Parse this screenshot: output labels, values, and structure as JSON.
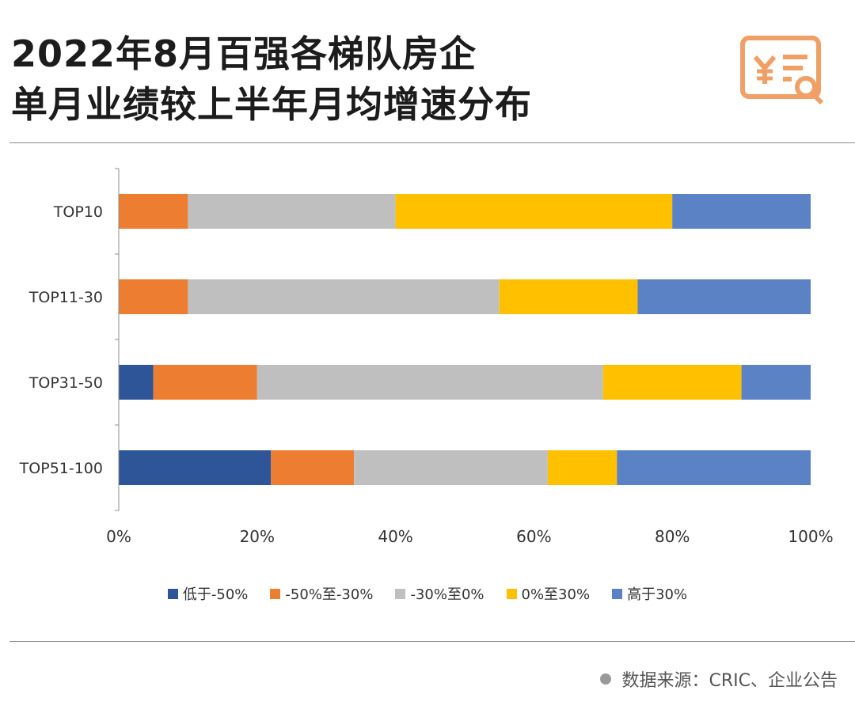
{
  "header": {
    "title_line1": "2022年8月百强各梯队房企",
    "title_line2": "单月业绩较上半年月均增速分布",
    "logo_icon": "yuan-document-search-icon",
    "accent_color": "#f0a066"
  },
  "chart_data": {
    "type": "bar",
    "orientation": "horizontal",
    "stacked": true,
    "percent_stacked": true,
    "categories": [
      "TOP10",
      "TOP11-30",
      "TOP31-50",
      "TOP51-100"
    ],
    "series": [
      {
        "name": "低于-50%",
        "color": "#2e5597",
        "values": [
          0,
          0,
          5,
          22
        ]
      },
      {
        "name": "-50%至-30%",
        "color": "#ed7d31",
        "values": [
          10,
          10,
          15,
          12
        ]
      },
      {
        "name": "-30%至0%",
        "color": "#bfbfbf",
        "values": [
          30,
          45,
          50,
          28
        ]
      },
      {
        "name": "0%至30%",
        "color": "#ffc000",
        "values": [
          40,
          20,
          20,
          10
        ]
      },
      {
        "name": "高于30%",
        "color": "#5b82c4",
        "values": [
          20,
          25,
          10,
          28
        ]
      }
    ],
    "x_ticks": [
      "0%",
      "20%",
      "40%",
      "60%",
      "80%",
      "100%"
    ],
    "xlim": [
      0,
      100
    ],
    "grid": false,
    "legend_position": "bottom"
  },
  "footer": {
    "source": "数据来源：CRIC、企业公告"
  }
}
